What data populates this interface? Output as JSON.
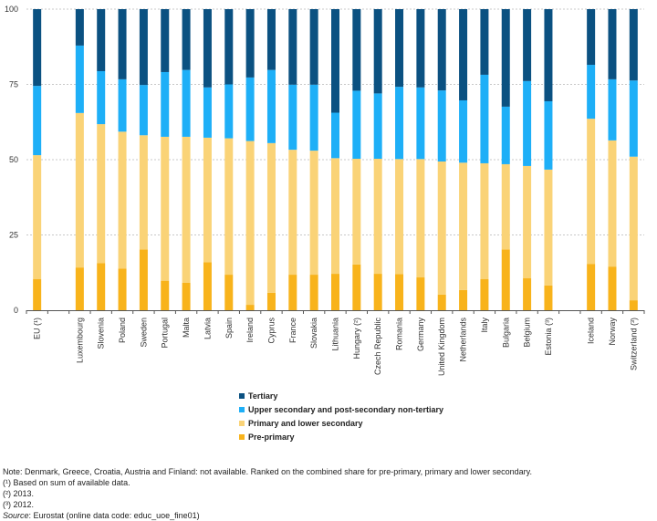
{
  "chart_data": {
    "type": "bar",
    "stacked": true,
    "title": "",
    "xlabel": "",
    "ylabel": "",
    "ylim": [
      0,
      100
    ],
    "yticks": [
      "0",
      "25",
      "50",
      "75",
      "100"
    ],
    "grid": true,
    "legend_position": "bottom-center",
    "categories": [
      "EU (¹)",
      "",
      "Luxembourg",
      "Slovenia",
      "Poland",
      "Sweden",
      "Portugal",
      "Malta",
      "Latvia",
      "Spain",
      "Ireland",
      "Cyprus",
      "France",
      "Slovakia",
      "Lithuania",
      "Hungary (²)",
      "Czech Republic",
      "Romania",
      "Germany",
      "United Kingdom",
      "Netherlands",
      "Italy",
      "Bulgaria",
      "Belgium",
      "Estonia (³)",
      "",
      "Iceland",
      "Norway",
      "Switzerland (³)"
    ],
    "series": [
      {
        "name": "Pre-primary",
        "color": "#f8b31b",
        "values": [
          10.3,
          null,
          14.2,
          15.6,
          13.8,
          20.2,
          9.8,
          9.1,
          15.9,
          11.8,
          1.8,
          5.8,
          11.8,
          11.8,
          12.1,
          15.2,
          12.1,
          12.0,
          10.9,
          5.2,
          6.7,
          10.3,
          20.2,
          10.6,
          8.2,
          null,
          15.4,
          14.5,
          3.3
        ]
      },
      {
        "name": "Primary and lower secondary",
        "color": "#fad377",
        "values": [
          41.2,
          null,
          51.3,
          46.2,
          45.5,
          37.9,
          47.8,
          48.5,
          41.4,
          45.3,
          54.4,
          49.7,
          41.5,
          41.2,
          38.4,
          35.1,
          38.2,
          38.2,
          39.3,
          44.2,
          42.3,
          38.5,
          28.3,
          37.3,
          38.5,
          null,
          48.2,
          41.9,
          47.7
        ]
      },
      {
        "name": "Upper secondary and post-secondary non-tertiary",
        "color": "#1eaff7",
        "values": [
          23.0,
          null,
          22.4,
          17.6,
          17.4,
          16.7,
          21.5,
          22.2,
          16.7,
          17.9,
          21.1,
          24.3,
          21.6,
          21.9,
          15.1,
          22.6,
          21.7,
          24.0,
          23.8,
          23.6,
          20.7,
          29.4,
          19.1,
          28.2,
          22.7,
          null,
          17.9,
          20.3,
          25.3
        ]
      },
      {
        "name": "Tertiary",
        "color": "#0b5181",
        "values": [
          25.5,
          null,
          12.1,
          20.6,
          23.3,
          25.2,
          20.9,
          20.2,
          26.0,
          25.0,
          22.7,
          20.2,
          25.1,
          25.1,
          34.4,
          27.1,
          28.0,
          25.8,
          26.0,
          27.0,
          30.3,
          21.8,
          32.4,
          23.9,
          30.6,
          null,
          18.5,
          23.3,
          23.7
        ]
      }
    ]
  },
  "legend": {
    "items": [
      {
        "label": "Tertiary",
        "color": "#0b5181"
      },
      {
        "label": "Upper secondary and post-secondary non-tertiary",
        "color": "#1eaff7"
      },
      {
        "label": "Primary and lower secondary",
        "color": "#fad377"
      },
      {
        "label": "Pre-primary",
        "color": "#f8b31b"
      }
    ]
  },
  "notes": {
    "note": "Note: Denmark, Greece, Croatia, Austria and Finland: not available. Ranked on the combined share for pre-primary, primary and lower secondary.",
    "footnote1": "(¹) Based on sum of available data.",
    "footnote2": "(²) 2013.",
    "footnote3": "(³) 2012.",
    "source_label": "Source",
    "source_text": ": Eurostat (online data code: educ_uoe_fine01)"
  }
}
